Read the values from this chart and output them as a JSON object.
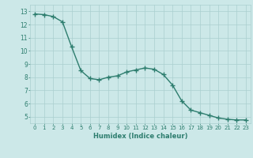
{
  "x": [
    0,
    1,
    2,
    3,
    4,
    5,
    6,
    7,
    8,
    9,
    10,
    11,
    12,
    13,
    14,
    15,
    16,
    17,
    18,
    19,
    20,
    21,
    22,
    23
  ],
  "y": [
    12.8,
    12.75,
    12.6,
    12.2,
    10.3,
    8.5,
    7.9,
    7.8,
    8.0,
    8.1,
    8.4,
    8.55,
    8.7,
    8.6,
    8.2,
    7.4,
    6.2,
    5.5,
    5.3,
    5.1,
    4.9,
    4.8,
    4.75,
    4.75
  ],
  "line_color": "#2d7d6e",
  "marker": "+",
  "bg_color": "#cce8e8",
  "grid_color": "#aacfcf",
  "xlabel": "Humidex (Indice chaleur)",
  "ylabel_ticks": [
    5,
    6,
    7,
    8,
    9,
    10,
    11,
    12,
    13
  ],
  "ylim": [
    4.5,
    13.5
  ],
  "xlim": [
    -0.5,
    23.5
  ],
  "line_width": 1.0,
  "marker_size": 4,
  "marker_edge_width": 1.0,
  "font_color": "#2d7d6e",
  "tick_fontsize": 5.0,
  "xlabel_fontsize": 6.0,
  "xlabel_fontweight": "bold"
}
